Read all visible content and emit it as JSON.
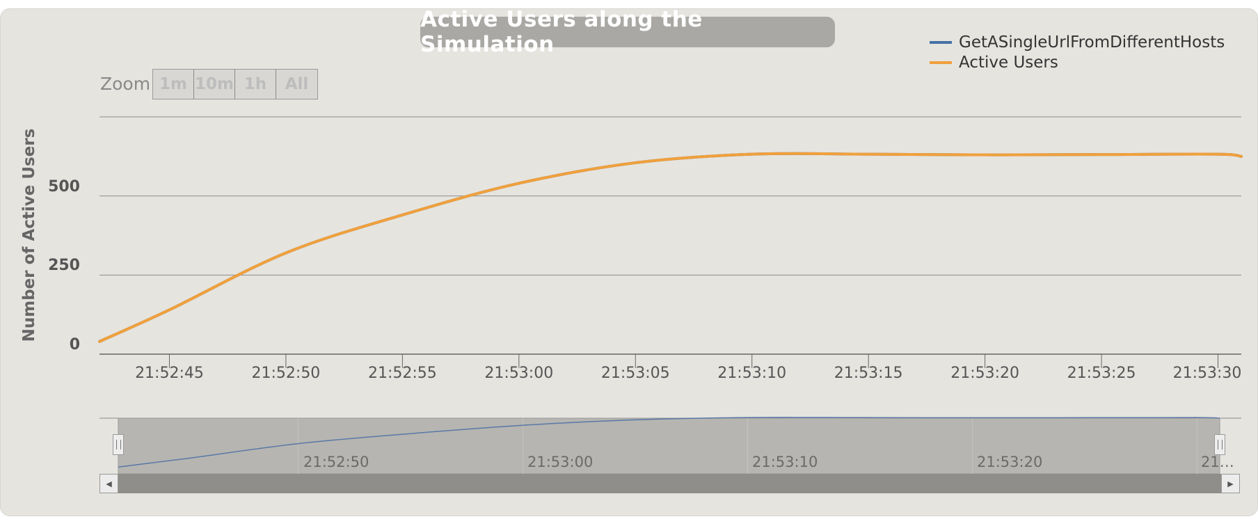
{
  "title": "Active Users along the Simulation",
  "zoom": {
    "label": "Zoom",
    "buttons": [
      "1m",
      "10m",
      "1h",
      "All"
    ]
  },
  "colors": {
    "background": "#e6e4df",
    "series_request": "#4572a7",
    "series_active": "#f0a03c",
    "grid": "#888888"
  },
  "chart_data": {
    "type": "line",
    "title": "Active Users along the Simulation",
    "ylabel": "Number of Active Users",
    "xlabel": "",
    "ylim": [
      0,
      750
    ],
    "yticks": [
      0,
      250,
      500
    ],
    "xticks": [
      "21:52:45",
      "21:52:50",
      "21:52:55",
      "21:53:00",
      "21:53:05",
      "21:53:10",
      "21:53:15",
      "21:53:20",
      "21:53:25",
      "21:53:30"
    ],
    "xrange": [
      "21:52:42",
      "21:53:31"
    ],
    "legend_position": "top-right",
    "grid": true,
    "series": [
      {
        "name": "GetASingleUrlFromDifferentHosts",
        "color": "#4572a7",
        "x": [
          "21:52:42",
          "21:52:45",
          "21:52:50",
          "21:52:55",
          "21:53:00",
          "21:53:05",
          "21:53:10",
          "21:53:15",
          "21:53:20",
          "21:53:25",
          "21:53:30",
          "21:53:31"
        ],
        "values": [
          40,
          140,
          320,
          440,
          540,
          605,
          632,
          632,
          630,
          631,
          632,
          625
        ]
      },
      {
        "name": "Active Users",
        "color": "#f0a03c",
        "x": [
          "21:52:42",
          "21:52:45",
          "21:52:50",
          "21:52:55",
          "21:53:00",
          "21:53:05",
          "21:53:10",
          "21:53:15",
          "21:53:20",
          "21:53:25",
          "21:53:30",
          "21:53:31"
        ],
        "values": [
          40,
          140,
          320,
          440,
          540,
          605,
          632,
          632,
          630,
          631,
          632,
          625
        ]
      }
    ]
  },
  "navigator": {
    "labels": [
      "21:52:50",
      "21:53:00",
      "21:53:10",
      "21:53:20",
      "21…"
    ]
  }
}
